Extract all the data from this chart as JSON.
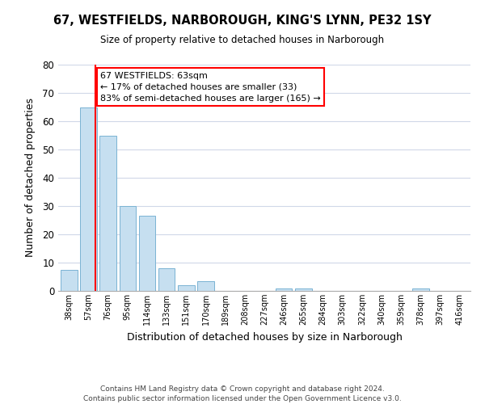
{
  "title": "67, WESTFIELDS, NARBOROUGH, KING'S LYNN, PE32 1SY",
  "subtitle": "Size of property relative to detached houses in Narborough",
  "xlabel": "Distribution of detached houses by size in Narborough",
  "ylabel": "Number of detached properties",
  "bar_labels": [
    "38sqm",
    "57sqm",
    "76sqm",
    "95sqm",
    "114sqm",
    "133sqm",
    "151sqm",
    "170sqm",
    "189sqm",
    "208sqm",
    "227sqm",
    "246sqm",
    "265sqm",
    "284sqm",
    "303sqm",
    "322sqm",
    "340sqm",
    "359sqm",
    "378sqm",
    "397sqm",
    "416sqm"
  ],
  "bar_heights": [
    7.5,
    65,
    55,
    30,
    26.5,
    8,
    2,
    3.5,
    0,
    0,
    0,
    1,
    1,
    0,
    0,
    0,
    0,
    0,
    1,
    0,
    0
  ],
  "bar_color": "#c6dff0",
  "bar_edgecolor": "#7ab3d3",
  "ylim": [
    0,
    80
  ],
  "yticks": [
    0,
    10,
    20,
    30,
    40,
    50,
    60,
    70,
    80
  ],
  "red_line_x": 1.35,
  "annotation_text": "67 WESTFIELDS: 63sqm\n← 17% of detached houses are smaller (33)\n83% of semi-detached houses are larger (165) →",
  "footer1": "Contains HM Land Registry data © Crown copyright and database right 2024.",
  "footer2": "Contains public sector information licensed under the Open Government Licence v3.0.",
  "background_color": "#ffffff",
  "grid_color": "#d0d8e8"
}
